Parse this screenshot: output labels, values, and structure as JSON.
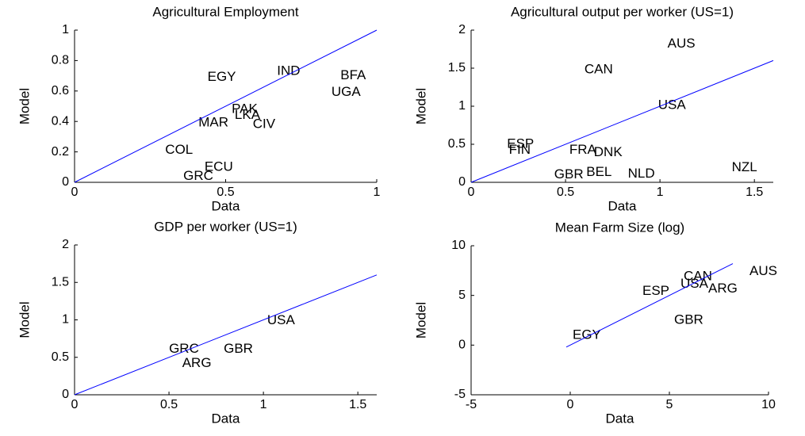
{
  "chart_data": [
    {
      "type": "scatter",
      "title": "Agricultural Employment",
      "xlabel": "Data",
      "ylabel": "Model",
      "xlim": [
        0,
        1
      ],
      "ylim": [
        0,
        1
      ],
      "xticks": [
        0,
        0.5,
        1
      ],
      "yticks": [
        0,
        0.2,
        0.4,
        0.6,
        0.8,
        1
      ],
      "labels": [
        "EGY",
        "IND",
        "BFA",
        "UGA",
        "PAK",
        "LKA",
        "MAR",
        "CIV",
        "COL",
        "ECU",
        "GRC"
      ],
      "x": [
        0.44,
        0.67,
        0.88,
        0.85,
        0.52,
        0.53,
        0.41,
        0.59,
        0.3,
        0.43,
        0.36
      ],
      "y": [
        0.69,
        0.73,
        0.7,
        0.59,
        0.48,
        0.44,
        0.39,
        0.38,
        0.21,
        0.1,
        0.04
      ],
      "color": "#000000",
      "fit_line": {
        "x": [
          0,
          1
        ],
        "y": [
          0,
          1
        ],
        "color": "#0000ff"
      }
    },
    {
      "type": "scatter",
      "title": "Agricultural output per worker (US=1)",
      "xlabel": "Data",
      "ylabel": "Model",
      "xlim": [
        0,
        1.6
      ],
      "ylim": [
        0,
        2
      ],
      "xticks": [
        0,
        0.5,
        1,
        1.5
      ],
      "yticks": [
        0,
        0.5,
        1,
        1.5,
        2
      ],
      "labels": [
        "AUS",
        "CAN",
        "USA",
        "NZL",
        "ESP",
        "FIN",
        "FRA",
        "DNK",
        "BEL",
        "NLD",
        "GBR"
      ],
      "x": [
        1.04,
        0.6,
        0.99,
        1.38,
        0.19,
        0.2,
        0.52,
        0.65,
        0.61,
        0.83,
        0.44
      ],
      "y": [
        1.82,
        1.48,
        1.01,
        0.19,
        0.5,
        0.42,
        0.42,
        0.39,
        0.13,
        0.11,
        0.1
      ],
      "color": "#000000",
      "fit_line": {
        "x": [
          0,
          1.6
        ],
        "y": [
          0,
          1.6
        ],
        "color": "#0000ff"
      }
    },
    {
      "type": "scatter",
      "title": "GDP per worker (US=1)",
      "xlabel": "Data",
      "ylabel": "Model",
      "xlim": [
        0,
        1.6
      ],
      "ylim": [
        0,
        2
      ],
      "xticks": [
        0,
        0.5,
        1,
        1.5
      ],
      "yticks": [
        0,
        0.5,
        1,
        1.5,
        2
      ],
      "labels": [
        "USA",
        "GBR",
        "GRC",
        "ARG"
      ],
      "x": [
        1.02,
        0.79,
        0.5,
        0.57
      ],
      "y": [
        0.99,
        0.61,
        0.61,
        0.42
      ],
      "color": "#000000",
      "fit_line": {
        "x": [
          0,
          1.6
        ],
        "y": [
          0,
          1.6
        ],
        "color": "#0000ff"
      }
    },
    {
      "type": "scatter",
      "title": "Mean Farm Size (log)",
      "xlabel": "Data",
      "ylabel": "Model",
      "xlim": [
        -5,
        10
      ],
      "ylim": [
        -5,
        10
      ],
      "xticks": [
        -5,
        0,
        5,
        10
      ],
      "yticks": [
        -5,
        0,
        5,
        10
      ],
      "labels": [
        "AUS",
        "CAN",
        "USA",
        "ARG",
        "ESP",
        "GBR",
        "EGY"
      ],
      "x": [
        9.04,
        5.72,
        5.56,
        6.96,
        3.64,
        5.24,
        0.12
      ],
      "y": [
        7.39,
        6.9,
        6.13,
        5.65,
        5.43,
        2.5,
        1.0
      ],
      "color": "#000000",
      "fit_line": {
        "x": [
          -0.2,
          8.2
        ],
        "y": [
          -0.2,
          8.2
        ],
        "color": "#0000ff"
      }
    }
  ]
}
